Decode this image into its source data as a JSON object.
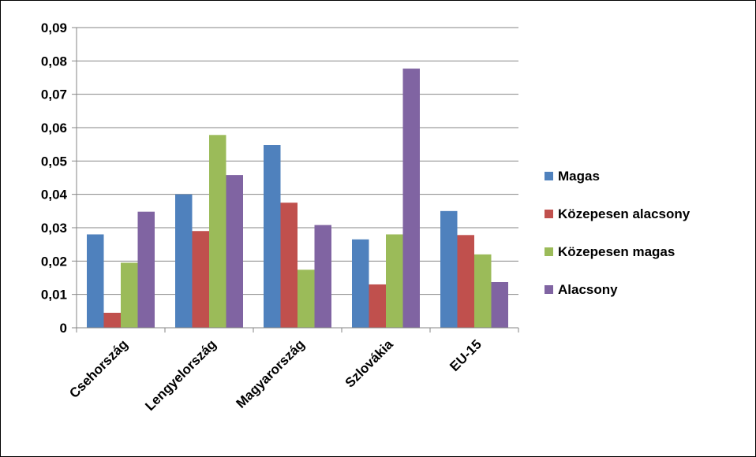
{
  "chart_data": {
    "type": "bar",
    "title": "",
    "xlabel": "",
    "ylabel": "",
    "categories": [
      "Csehország",
      "Lengyelország",
      "Magyarország",
      "Szlovákia",
      "EU-15"
    ],
    "ylim": [
      0,
      0.09
    ],
    "yticks": [
      0,
      0.01,
      0.02,
      0.03,
      0.04,
      0.05,
      0.06,
      0.07,
      0.08,
      0.09
    ],
    "ytick_labels": [
      "0",
      "0,01",
      "0,02",
      "0,03",
      "0,04",
      "0,05",
      "0,06",
      "0,07",
      "0,08",
      "0,09"
    ],
    "grid": true,
    "legend_position": "right",
    "series": [
      {
        "name": "Magas",
        "color": "#4F81BD",
        "values": [
          0.028,
          0.04,
          0.0548,
          0.0265,
          0.035
        ]
      },
      {
        "name": "Közepesen alacsony",
        "color": "#C0504D",
        "values": [
          0.0045,
          0.029,
          0.0375,
          0.013,
          0.0278
        ]
      },
      {
        "name": "Közepesen magas",
        "color": "#9BBB59",
        "values": [
          0.0195,
          0.0578,
          0.0174,
          0.028,
          0.022
        ]
      },
      {
        "name": "Alacsony",
        "color": "#8064A2",
        "values": [
          0.0348,
          0.0458,
          0.0308,
          0.0777,
          0.0137
        ]
      }
    ]
  }
}
